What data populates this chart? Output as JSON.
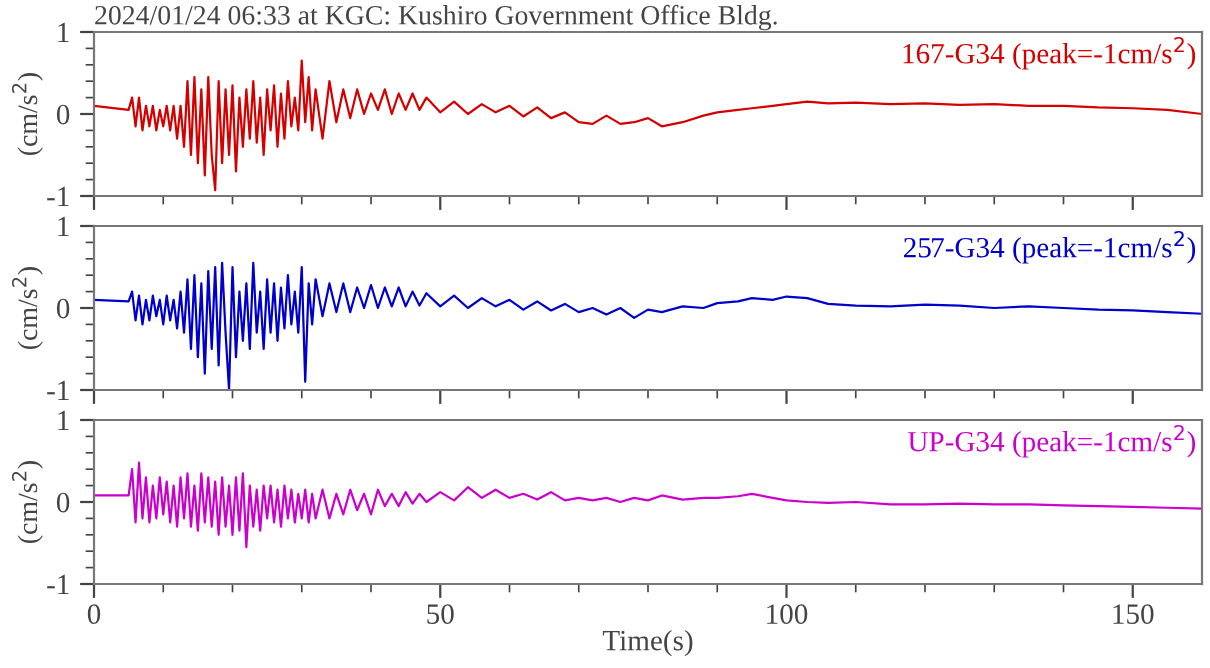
{
  "chart_data": [
    {
      "type": "line",
      "title": "2024/01/24 06:33 at KGC: Kushiro Government Office Bldg.",
      "ylabel": "(cm/s$^{2}$)",
      "xlim": [
        0,
        160
      ],
      "ylim": [
        -1,
        1
      ],
      "tick_labels": "y",
      "legend": false,
      "grid": false,
      "xticks": [
        0,
        {
          "value": 10,
          "label": null
        },
        {
          "value": 20,
          "label": null
        },
        {
          "value": 30,
          "label": null
        },
        {
          "value": 40,
          "label": null
        },
        50,
        {
          "value": 60,
          "label": null
        },
        {
          "value": 70,
          "label": null
        },
        {
          "value": 80,
          "label": null
        },
        {
          "value": 90,
          "label": null
        },
        100,
        {
          "value": 110,
          "label": null
        },
        {
          "value": 120,
          "label": null
        },
        {
          "value": 130,
          "label": null
        },
        {
          "value": 140,
          "label": null
        },
        150
      ],
      "yticks": [
        -1,
        {
          "value": -0.8,
          "label": null
        },
        {
          "value": -0.6,
          "label": null
        },
        {
          "value": -0.4,
          "label": null
        },
        {
          "value": -0.2,
          "label": null
        },
        0,
        {
          "value": 0.2,
          "label": null
        },
        {
          "value": 0.4,
          "label": null
        },
        {
          "value": 0.6,
          "label": null
        },
        {
          "value": 0.8,
          "label": null
        },
        1
      ],
      "series": [
        {
          "name": "167-G34 (peak=-1cm/s$^{2}$)",
          "color": "#d40000",
          "x": [
            0,
            5,
            5.5,
            6,
            6.5,
            7,
            7.5,
            8,
            8.5,
            9,
            9.5,
            10,
            10.5,
            11,
            11.5,
            12,
            12.5,
            13,
            13.5,
            14,
            14.5,
            15,
            15.5,
            16,
            16.5,
            17,
            17.5,
            18,
            18.5,
            19,
            19.5,
            20,
            20.5,
            21,
            21.5,
            22,
            22.5,
            23,
            23.5,
            24,
            24.5,
            25,
            25.5,
            26,
            26.5,
            27,
            27.5,
            28,
            28.5,
            29,
            29.5,
            30,
            30.5,
            31,
            31.5,
            32,
            33,
            34,
            35,
            36,
            37,
            38,
            39,
            40,
            41,
            42,
            43,
            44,
            45,
            46,
            47,
            48,
            50,
            52,
            54,
            56,
            58,
            60,
            62,
            64,
            66,
            68,
            70,
            72,
            74,
            76,
            78,
            80,
            82,
            85,
            88,
            90,
            93,
            95,
            98,
            100,
            103,
            106,
            110,
            115,
            120,
            125,
            130,
            135,
            140,
            145,
            150,
            155,
            160
          ],
          "values": [
            0.1,
            0.05,
            0.2,
            -0.15,
            0.2,
            -0.2,
            0.1,
            -0.15,
            0.1,
            -0.2,
            0.05,
            -0.15,
            0.1,
            -0.2,
            0.1,
            -0.3,
            0.1,
            -0.4,
            0.4,
            -0.5,
            0.45,
            -0.6,
            0.3,
            -0.75,
            0.45,
            -0.5,
            -0.93,
            0.4,
            -0.6,
            0.3,
            -0.5,
            0.35,
            -0.7,
            0.2,
            -0.4,
            0.3,
            -0.3,
            0.4,
            -0.35,
            0.2,
            -0.5,
            0.3,
            -0.2,
            0.35,
            -0.4,
            0.25,
            -0.3,
            0.4,
            -0.15,
            0.2,
            -0.2,
            0.65,
            -0.1,
            0.45,
            -0.2,
            0.3,
            -0.3,
            0.4,
            -0.1,
            0.3,
            -0.05,
            0.3,
            0,
            0.25,
            0.05,
            0.3,
            0,
            0.25,
            0.05,
            0.25,
            0.05,
            0.2,
            0.02,
            0.15,
            0,
            0.12,
            0.02,
            0.1,
            -0.03,
            0.08,
            -0.05,
            0.02,
            -0.1,
            -0.12,
            -0.02,
            -0.12,
            -0.1,
            -0.05,
            -0.15,
            -0.1,
            -0.02,
            0.02,
            0.05,
            0.07,
            0.1,
            0.12,
            0.15,
            0.13,
            0.14,
            0.12,
            0.13,
            0.11,
            0.12,
            0.1,
            0.1,
            0.08,
            0.07,
            0.05,
            0.0
          ]
        }
      ]
    },
    {
      "type": "line",
      "ylabel": "(cm/s$^{2}$)",
      "xlim": [
        0,
        160
      ],
      "ylim": [
        -1,
        1
      ],
      "tick_labels": "y",
      "legend": false,
      "grid": false,
      "xticks": [
        0,
        {
          "value": 10,
          "label": null
        },
        {
          "value": 20,
          "label": null
        },
        {
          "value": 30,
          "label": null
        },
        {
          "value": 40,
          "label": null
        },
        50,
        {
          "value": 60,
          "label": null
        },
        {
          "value": 70,
          "label": null
        },
        {
          "value": 80,
          "label": null
        },
        {
          "value": 90,
          "label": null
        },
        100,
        {
          "value": 110,
          "label": null
        },
        {
          "value": 120,
          "label": null
        },
        {
          "value": 130,
          "label": null
        },
        {
          "value": 140,
          "label": null
        },
        150
      ],
      "yticks": [
        -1,
        {
          "value": -0.8,
          "label": null
        },
        {
          "value": -0.6,
          "label": null
        },
        {
          "value": -0.4,
          "label": null
        },
        {
          "value": -0.2,
          "label": null
        },
        0,
        {
          "value": 0.2,
          "label": null
        },
        {
          "value": 0.4,
          "label": null
        },
        {
          "value": 0.6,
          "label": null
        },
        {
          "value": 0.8,
          "label": null
        },
        1
      ],
      "series": [
        {
          "name": "257-G34 (peak=-1cm/s$^{2}$)",
          "color": "#0000cc",
          "x": [
            0,
            5,
            5.5,
            6,
            6.5,
            7,
            7.5,
            8,
            8.5,
            9,
            9.5,
            10,
            10.5,
            11,
            11.5,
            12,
            12.5,
            13,
            13.5,
            14,
            14.5,
            15,
            15.5,
            16,
            16.5,
            17,
            17.5,
            18,
            18.5,
            19,
            19.5,
            20,
            20.5,
            21,
            21.5,
            22,
            22.5,
            23,
            23.5,
            24,
            24.5,
            25,
            25.5,
            26,
            26.5,
            27,
            27.5,
            28,
            28.5,
            29,
            29.5,
            30,
            30.5,
            31,
            31.5,
            32,
            33,
            34,
            35,
            36,
            37,
            38,
            39,
            40,
            41,
            42,
            43,
            44,
            45,
            46,
            47,
            48,
            50,
            52,
            54,
            56,
            58,
            60,
            62,
            64,
            66,
            68,
            70,
            72,
            74,
            76,
            78,
            80,
            82,
            85,
            88,
            90,
            93,
            95,
            98,
            100,
            103,
            106,
            110,
            115,
            120,
            125,
            130,
            135,
            140,
            145,
            150,
            155,
            160
          ],
          "values": [
            0.1,
            0.08,
            0.2,
            -0.15,
            0.15,
            -0.2,
            0.1,
            -0.15,
            0.15,
            -0.1,
            0.1,
            -0.2,
            0.15,
            -0.15,
            0.1,
            -0.25,
            0.2,
            -0.3,
            0.35,
            -0.5,
            0.4,
            -0.6,
            0.3,
            -0.8,
            0.45,
            -0.5,
            0.5,
            -0.7,
            0.55,
            -0.3,
            -1.0,
            0.5,
            -0.6,
            0.2,
            -0.4,
            0.3,
            -0.5,
            0.55,
            -0.3,
            0.2,
            -0.5,
            0.35,
            -0.3,
            0.3,
            -0.4,
            0.25,
            -0.25,
            0.4,
            -0.2,
            0.2,
            -0.3,
            0.5,
            -0.9,
            0.3,
            -0.2,
            0.35,
            -0.1,
            0.3,
            -0.05,
            0.3,
            -0.05,
            0.25,
            0,
            0.28,
            0,
            0.25,
            0.02,
            0.25,
            0.02,
            0.2,
            0.03,
            0.18,
            0.02,
            0.15,
            0,
            0.12,
            0.02,
            0.1,
            -0.02,
            0.08,
            -0.03,
            0.05,
            -0.05,
            0.0,
            -0.08,
            0.0,
            -0.12,
            -0.02,
            -0.05,
            0.02,
            0.0,
            0.06,
            0.08,
            0.12,
            0.1,
            0.14,
            0.12,
            0.05,
            0.03,
            0.02,
            0.04,
            0.03,
            0.0,
            0.02,
            0.0,
            -0.02,
            -0.03,
            -0.05,
            -0.07
          ]
        }
      ]
    },
    {
      "type": "line",
      "xlabel": "Time(s)",
      "ylabel": "(cm/s$^{2}$)",
      "xlim": [
        0,
        160
      ],
      "ylim": [
        -1,
        1
      ],
      "legend": false,
      "grid": false,
      "xticks": [
        0,
        {
          "value": 10,
          "label": null
        },
        {
          "value": 20,
          "label": null
        },
        {
          "value": 30,
          "label": null
        },
        {
          "value": 40,
          "label": null
        },
        50,
        {
          "value": 60,
          "label": null
        },
        {
          "value": 70,
          "label": null
        },
        {
          "value": 80,
          "label": null
        },
        {
          "value": 90,
          "label": null
        },
        100,
        {
          "value": 110,
          "label": null
        },
        {
          "value": 120,
          "label": null
        },
        {
          "value": 130,
          "label": null
        },
        {
          "value": 140,
          "label": null
        },
        150
      ],
      "yticks": [
        -1,
        {
          "value": -0.8,
          "label": null
        },
        {
          "value": -0.6,
          "label": null
        },
        {
          "value": -0.4,
          "label": null
        },
        {
          "value": -0.2,
          "label": null
        },
        0,
        {
          "value": 0.2,
          "label": null
        },
        {
          "value": 0.4,
          "label": null
        },
        {
          "value": 0.6,
          "label": null
        },
        {
          "value": 0.8,
          "label": null
        },
        1
      ],
      "series": [
        {
          "name": "UP-G34 (peak=-1cm/s$^{2}$)",
          "color": "#cc00cc",
          "x": [
            0,
            5,
            5.5,
            6,
            6.5,
            7,
            7.5,
            8,
            8.5,
            9,
            9.5,
            10,
            10.5,
            11,
            11.5,
            12,
            12.5,
            13,
            13.5,
            14,
            14.5,
            15,
            15.5,
            16,
            16.5,
            17,
            17.5,
            18,
            18.5,
            19,
            19.5,
            20,
            20.5,
            21,
            21.5,
            22,
            22.5,
            23,
            23.5,
            24,
            24.5,
            25,
            25.5,
            26,
            26.5,
            27,
            27.5,
            28,
            28.5,
            29,
            29.5,
            30,
            30.5,
            31,
            31.5,
            32,
            33,
            34,
            35,
            36,
            37,
            38,
            39,
            40,
            41,
            42,
            43,
            44,
            45,
            46,
            47,
            48,
            50,
            52,
            54,
            56,
            58,
            60,
            62,
            64,
            66,
            68,
            70,
            72,
            74,
            76,
            78,
            80,
            82,
            85,
            88,
            90,
            93,
            95,
            98,
            100,
            103,
            106,
            110,
            115,
            120,
            125,
            130,
            135,
            140,
            145,
            150,
            155,
            160
          ],
          "values": [
            0.08,
            0.08,
            0.4,
            -0.25,
            0.48,
            -0.2,
            0.3,
            -0.25,
            0.2,
            -0.2,
            0.3,
            -0.15,
            0.25,
            -0.25,
            0.2,
            -0.3,
            0.3,
            -0.2,
            0.35,
            -0.3,
            0.2,
            -0.35,
            0.35,
            -0.25,
            0.3,
            -0.3,
            0.25,
            -0.4,
            0.3,
            -0.3,
            0.2,
            -0.4,
            0.3,
            -0.35,
            0.35,
            -0.55,
            0.2,
            -0.3,
            0.15,
            -0.35,
            0.2,
            -0.2,
            0.2,
            -0.25,
            0.15,
            -0.3,
            0.2,
            -0.2,
            0.15,
            -0.25,
            0.1,
            -0.2,
            0.15,
            -0.25,
            0.1,
            -0.2,
            0.15,
            -0.2,
            0.1,
            -0.15,
            0.15,
            -0.1,
            0.1,
            -0.15,
            0.15,
            -0.05,
            0.1,
            -0.05,
            0.12,
            -0.02,
            0.1,
            0,
            0.12,
            0.02,
            0.18,
            0.05,
            0.15,
            0.05,
            0.1,
            0.03,
            0.12,
            0.02,
            0.05,
            0.02,
            0.05,
            0,
            0.05,
            0.02,
            0.08,
            0.03,
            0.05,
            0.05,
            0.07,
            0.1,
            0.05,
            0.02,
            0.0,
            -0.01,
            0.0,
            -0.03,
            -0.03,
            -0.02,
            -0.03,
            -0.03,
            -0.04,
            -0.05,
            -0.06,
            -0.07,
            -0.08
          ]
        }
      ]
    }
  ]
}
